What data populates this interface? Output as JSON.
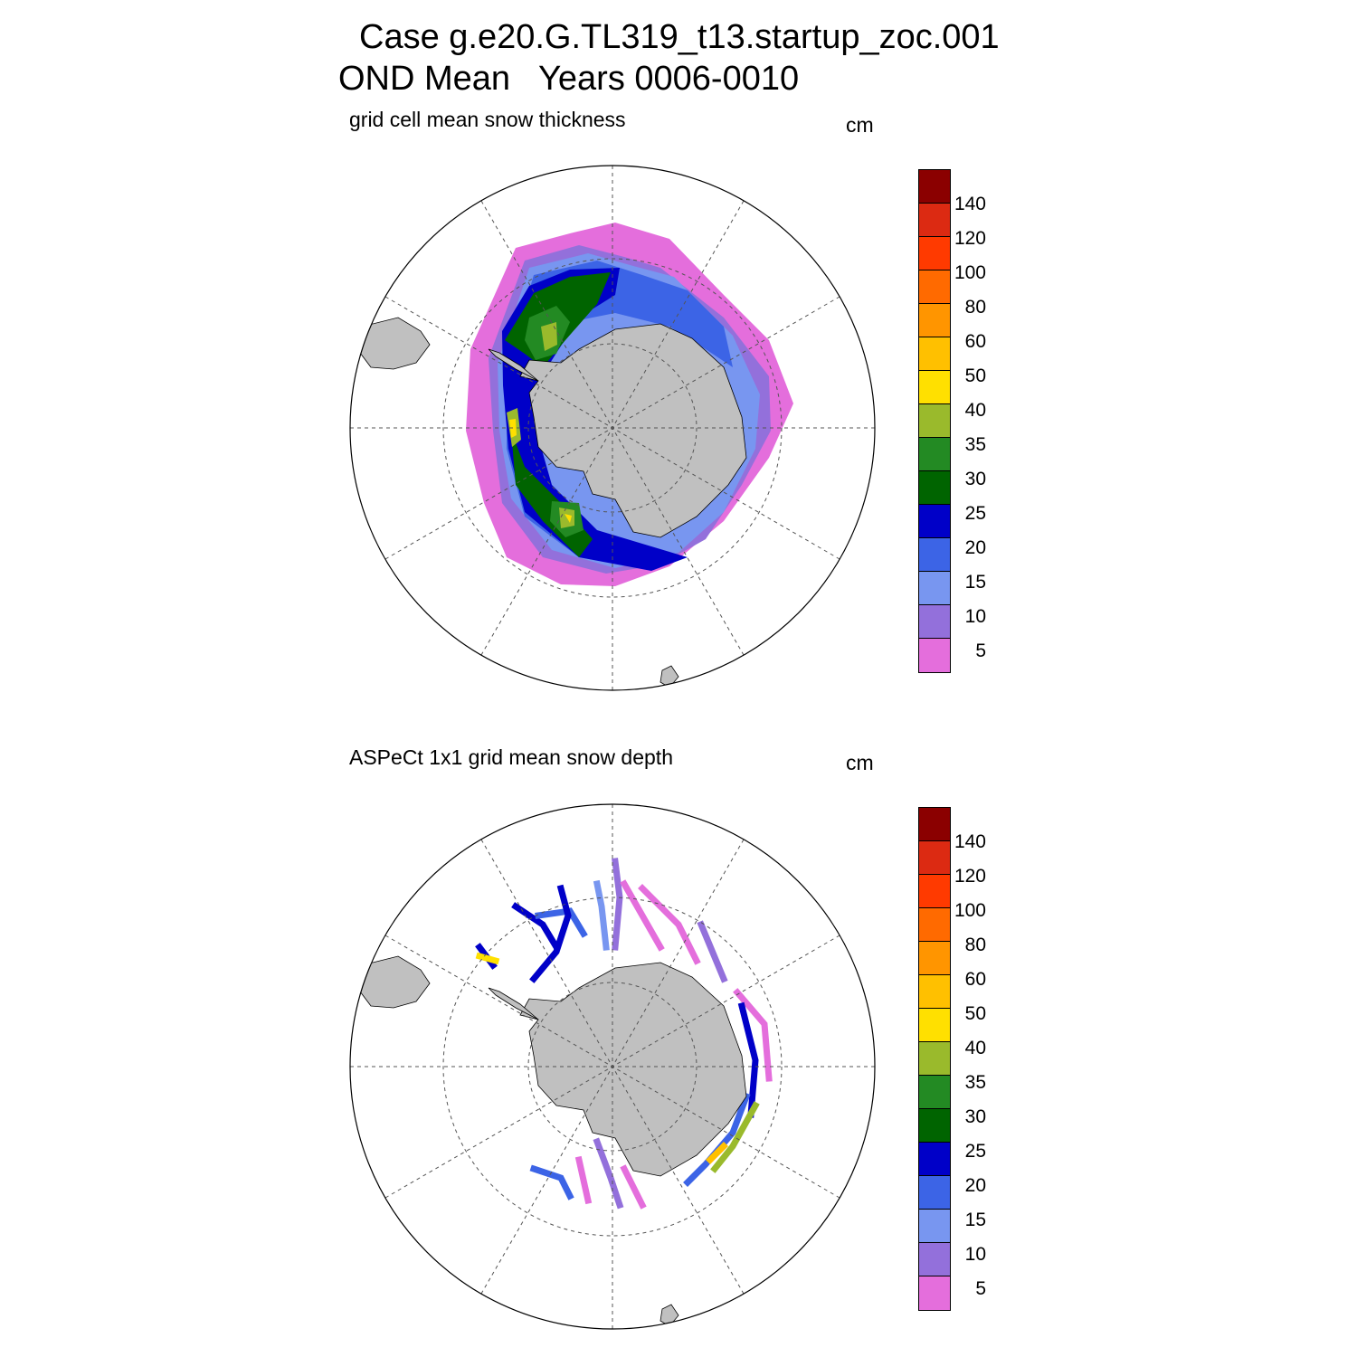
{
  "title": {
    "line1": "Case g.e20.G.TL319_t13.startup_zoc.001",
    "line2": "OND Mean   Years 0006-0010"
  },
  "panels": [
    {
      "subtitle": "grid cell mean snow thickness",
      "units": "cm"
    },
    {
      "subtitle": "ASPeCt 1x1 grid mean snow depth",
      "units": "cm"
    }
  ],
  "colorbar": {
    "labels": [
      "140",
      "120",
      "100",
      "80",
      "60",
      "50",
      "40",
      "35",
      "30",
      "25",
      "20",
      "15",
      "10",
      "5"
    ],
    "colors": [
      "#8b0000",
      "#dc2a12",
      "#ff3a00",
      "#ff6a00",
      "#ff9500",
      "#ffc000",
      "#ffe000",
      "#9aba2c",
      "#238a23",
      "#006400",
      "#0000c8",
      "#3c64e6",
      "#7896f0",
      "#9370db",
      "#e46edc"
    ]
  },
  "map_colors": {
    "land": "#c0c0c0",
    "grid": "#555555"
  }
}
